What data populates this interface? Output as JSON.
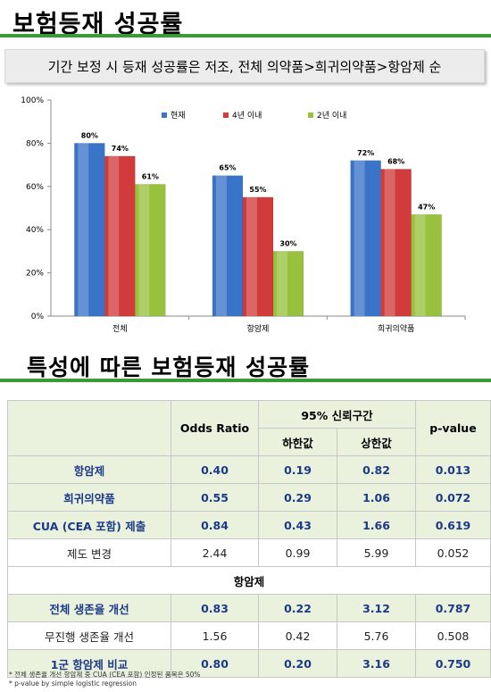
{
  "page": {
    "title1": "보험등재 성공률",
    "subtitle": "기간 보정 시 등재 성공률은 저조, 전체 의약품>희귀의약품>항암제 순",
    "title2": "특성에 따른 보험등재 성공률"
  },
  "chart_data": {
    "type": "bar",
    "categories": [
      "전체",
      "항암제",
      "희귀의약품"
    ],
    "series": [
      {
        "name": "현재",
        "values": [
          80,
          65,
          72
        ],
        "color": "#3a74c8"
      },
      {
        "name": "4년 이내",
        "values": [
          74,
          55,
          68
        ],
        "color": "#d13b3b"
      },
      {
        "name": "2년 이내",
        "values": [
          61,
          30,
          47
        ],
        "color": "#98c23d"
      }
    ],
    "value_labels": [
      [
        "80%",
        "74%",
        "61%"
      ],
      [
        "65%",
        "55%",
        "30%"
      ],
      [
        "72%",
        "68%",
        "47%"
      ]
    ],
    "ylim": [
      0,
      100
    ],
    "yticks": [
      "0%",
      "20%",
      "40%",
      "60%",
      "80%",
      "100%"
    ],
    "legend_position": "top-right",
    "grid": false
  },
  "table": {
    "header": {
      "odds": "Odds Ratio",
      "ci": "95% 신뢰구간",
      "lower": "하한값",
      "upper": "상한값",
      "pvalue": "p-value"
    },
    "section_label": "항암제",
    "rows_group1": [
      {
        "label": "항암제",
        "odds": "0.40",
        "lower": "0.19",
        "upper": "0.82",
        "p": "0.013",
        "style": "hl"
      },
      {
        "label": "희귀의약품",
        "odds": "0.55",
        "lower": "0.29",
        "upper": "1.06",
        "p": "0.072",
        "style": "hl"
      },
      {
        "label": "CUA (CEA 포함) 제출",
        "odds": "0.84",
        "lower": "0.43",
        "upper": "1.66",
        "p": "0.619",
        "style": "hl"
      },
      {
        "label": "제도 변경",
        "odds": "2.44",
        "lower": "0.99",
        "upper": "5.99",
        "p": "0.052",
        "style": "plain"
      }
    ],
    "rows_group2": [
      {
        "label": "전체 생존율 개선",
        "odds": "0.83",
        "lower": "0.22",
        "upper": "3.12",
        "p": "0.787",
        "style": "hl"
      },
      {
        "label": "무진행 생존율 개선",
        "odds": "1.56",
        "lower": "0.42",
        "upper": "5.76",
        "p": "0.508",
        "style": "plain"
      },
      {
        "label": "1군 항암제 비교",
        "odds": "0.80",
        "lower": "0.20",
        "upper": "3.16",
        "p": "0.750",
        "style": "hl"
      }
    ]
  },
  "footnotes": {
    "note1": "* 전체 생존율 개선 항암제 중 CUA (CEA 포함) 인정된 품목은 50%",
    "note2": "* p-value by simple logistic regression"
  }
}
